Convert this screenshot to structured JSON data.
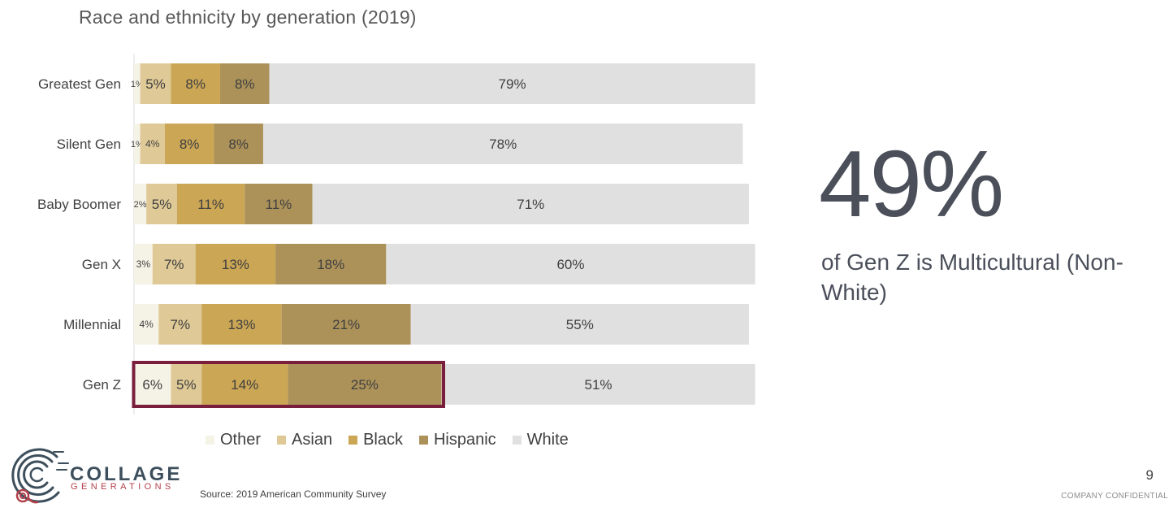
{
  "title": "Race and ethnicity by generation (2019)",
  "chart_data": {
    "type": "bar",
    "orientation": "horizontal",
    "stacked": true,
    "title": "Race and ethnicity by generation (2019)",
    "categories": [
      "Greatest Gen",
      "Silent Gen",
      "Baby Boomer",
      "Gen X",
      "Millennial",
      "Gen Z"
    ],
    "series": [
      {
        "name": "Other",
        "color": "#f5f2e6",
        "values": [
          1,
          1,
          2,
          3,
          4,
          6
        ]
      },
      {
        "name": "Asian",
        "color": "#dfc996",
        "values": [
          5,
          4,
          5,
          7,
          7,
          5
        ]
      },
      {
        "name": "Black",
        "color": "#cba655",
        "values": [
          8,
          8,
          11,
          13,
          13,
          14
        ]
      },
      {
        "name": "Hispanic",
        "color": "#ac9259",
        "values": [
          8,
          8,
          11,
          18,
          21,
          25
        ]
      },
      {
        "name": "White",
        "color": "#e0e0e0",
        "values": [
          79,
          78,
          71,
          60,
          55,
          51
        ]
      }
    ],
    "value_suffix": "%",
    "highlight": {
      "category": "Gen Z",
      "series": [
        "Other",
        "Asian",
        "Black",
        "Hispanic"
      ],
      "color": "#7a1e3d"
    },
    "xlim": [
      0,
      100
    ],
    "legend_position": "bottom"
  },
  "legend": [
    {
      "label": "Other",
      "color": "#f5f2e6"
    },
    {
      "label": "Asian",
      "color": "#dfc996"
    },
    {
      "label": "Black",
      "color": "#cba655"
    },
    {
      "label": "Hispanic",
      "color": "#ac9259"
    },
    {
      "label": "White",
      "color": "#e0e0e0"
    }
  ],
  "stat": {
    "value": "49%",
    "description": "of Gen Z is Multicultural (Non-White)"
  },
  "logo": {
    "word": "COLLAGE",
    "subword": "GENERATIONS"
  },
  "source": "Source: 2019 American Community Survey",
  "page_number": "9",
  "footer": "COMPANY CONFIDENTIAL"
}
